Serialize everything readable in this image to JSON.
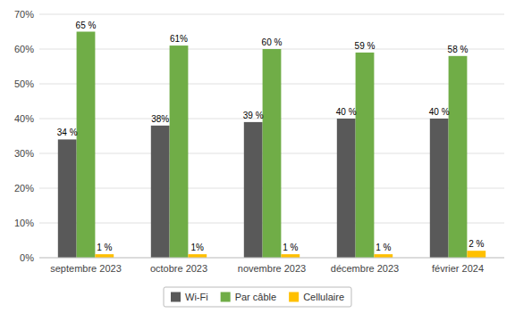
{
  "chart_data": {
    "type": "bar",
    "categories": [
      "septembre 2023",
      "octobre 2023",
      "novembre 2023",
      "décembre 2023",
      "février 2024"
    ],
    "series": [
      {
        "name": "Wi-Fi",
        "color": "#595959",
        "values": [
          34,
          38,
          39,
          40,
          40
        ],
        "value_labels": [
          "34 %",
          "38%",
          "39 %",
          "40 %",
          "40 %"
        ]
      },
      {
        "name": "Par câble",
        "color": "#70ad47",
        "values": [
          65,
          61,
          60,
          59,
          58
        ],
        "value_labels": [
          "65 %",
          "61%",
          "60 %",
          "59 %",
          "58 %"
        ]
      },
      {
        "name": "Cellulaire",
        "color": "#ffc000",
        "values": [
          1,
          1,
          1,
          1,
          2
        ],
        "value_labels": [
          "1 %",
          "1%",
          "1 %",
          "1 %",
          "2 %"
        ]
      }
    ],
    "ylim": [
      0,
      70
    ],
    "yticks": [
      {
        "value": 0,
        "label": "0%"
      },
      {
        "value": 10,
        "label": "10%"
      },
      {
        "value": 20,
        "label": "20%"
      },
      {
        "value": 30,
        "label": "30%"
      },
      {
        "value": 40,
        "label": "40%"
      },
      {
        "value": 50,
        "label": "50%"
      },
      {
        "value": 60,
        "label": "60%"
      },
      {
        "value": 70,
        "label": "70%"
      }
    ],
    "grid": true,
    "legend": "bottom",
    "data_labels": true
  }
}
